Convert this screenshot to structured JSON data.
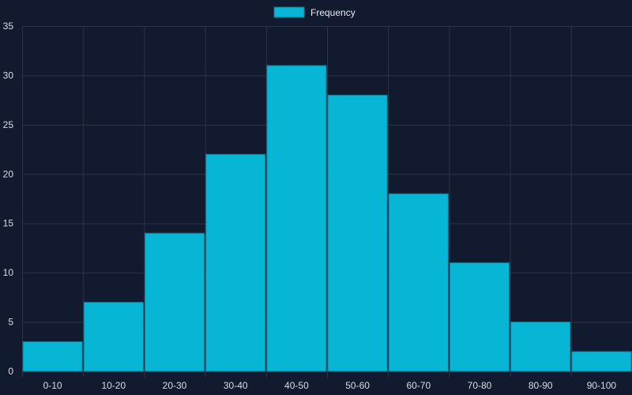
{
  "colors": {
    "background": "#111a2e",
    "grid": "#2b3448",
    "bar_fill": "#06b6d4",
    "bar_stroke": "#0e7490",
    "text": "#d7dde8"
  },
  "chart_data": {
    "type": "bar",
    "title": "",
    "xlabel": "",
    "ylabel": "",
    "legend": {
      "position": "top-center",
      "entries": [
        "Frequency"
      ]
    },
    "categories": [
      "0-10",
      "10-20",
      "20-30",
      "30-40",
      "40-50",
      "50-60",
      "60-70",
      "70-80",
      "80-90",
      "90-100"
    ],
    "series": [
      {
        "name": "Frequency",
        "values": [
          3,
          7,
          14,
          22,
          31,
          28,
          18,
          11,
          5,
          2
        ]
      }
    ],
    "ylim": [
      0,
      35
    ],
    "yticks": [
      0,
      5,
      10,
      15,
      20,
      25,
      30,
      35
    ],
    "grid": true
  }
}
